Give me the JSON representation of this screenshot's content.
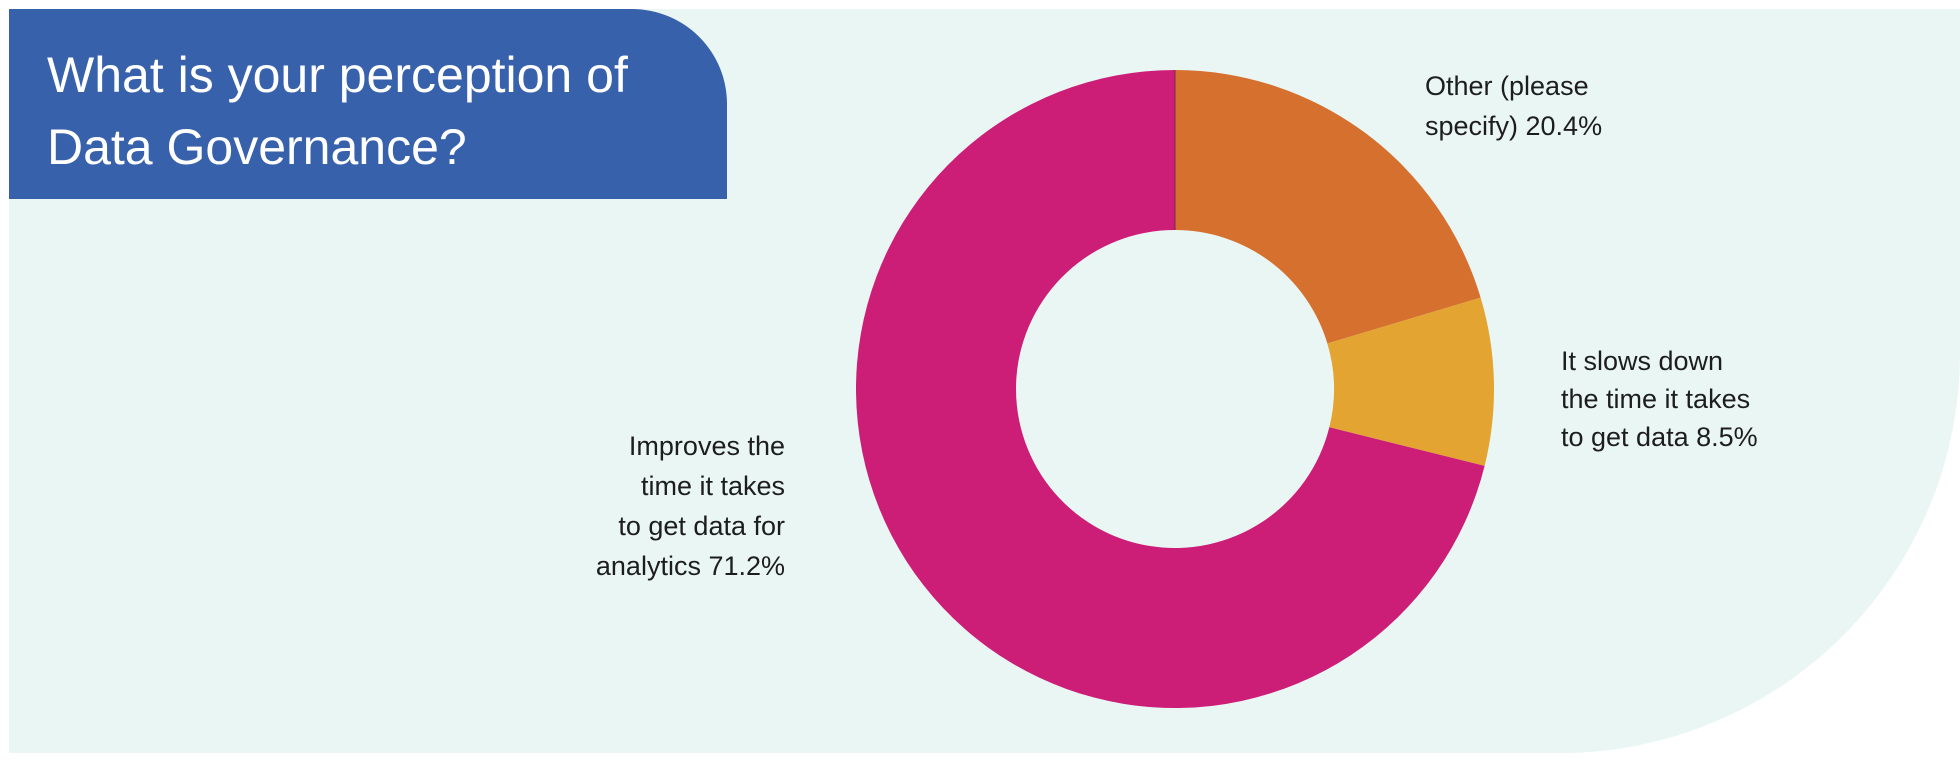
{
  "title": "What is your perception of Data Governance?",
  "chart_data": {
    "type": "pie",
    "donut": true,
    "title": "What is your perception of Data Governance?",
    "categories": [
      "Other (please specify)",
      "It slows down the time it takes to get data",
      "Improves the time it takes to get data for analytics"
    ],
    "values": [
      20.4,
      8.5,
      71.2
    ],
    "unit": "%",
    "start": "12 o'clock",
    "direction": "clockwise",
    "colors": [
      "#d6702e",
      "#e3a432",
      "#cc1e77"
    ],
    "labels": [
      [
        "Other (please",
        "specify) 20.4%"
      ],
      [
        "It slows down",
        "the time it takes",
        "to get data 8.5%"
      ],
      [
        "Improves the",
        "time it takes",
        "to get data for",
        "analytics 71.2%"
      ]
    ]
  },
  "colors": {
    "panel_bg": "#eaf6f4",
    "title_bg": "#3861ac",
    "title_text": "#ffffff",
    "label_text": "#1d1d1d"
  }
}
